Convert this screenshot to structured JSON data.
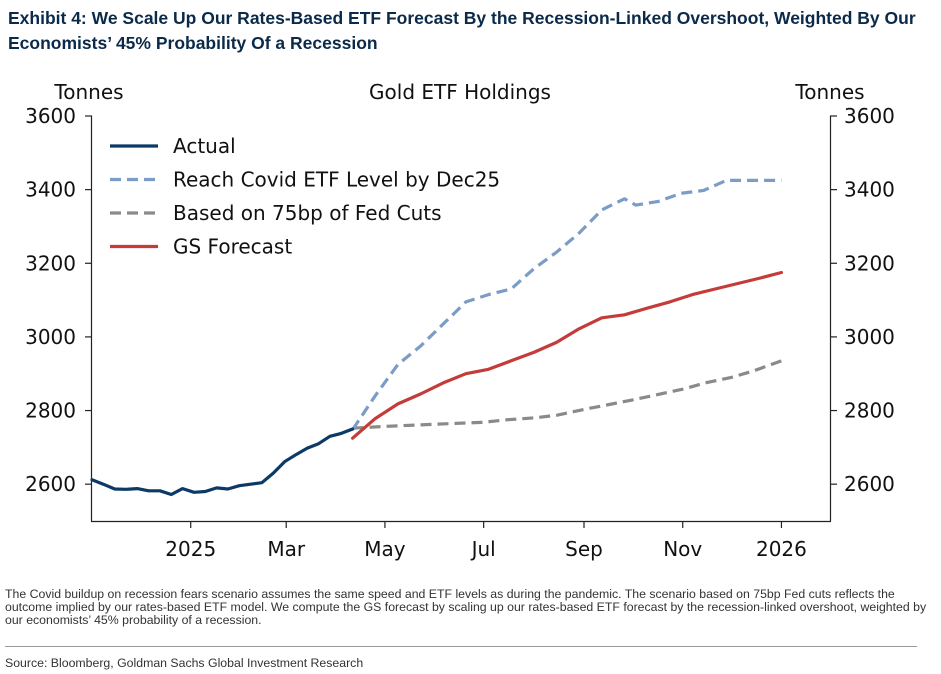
{
  "exhibit_title": "Exhibit 4: We Scale Up Our Rates-Based ETF Forecast By the Recession-Linked Overshoot, Weighted By Our Economists’ 45% Probability Of a Recession",
  "note": "The Covid buildup on recession fears scenario assumes the same speed and ETF levels as during the pandemic. The scenario based on 75bp Fed cuts reflects the outcome implied by our rates-based ETF model. We compute the GS forecast by scaling up our rates-based ETF forecast by the recession-linked overshoot, weighted by our economists’ 45% probability of a recession.",
  "source": "Source: Bloomberg, Goldman Sachs Global Investment Research",
  "chart_data": {
    "type": "line",
    "title": "Gold ETF Holdings",
    "ylabel_left": "Tonnes",
    "ylabel_right": "Tonnes",
    "ylim": [
      2500,
      3600
    ],
    "xlim": [
      "2024-11-01",
      "2026-01-31"
    ],
    "x_ticks": [
      {
        "date": "2025-01-01",
        "label": "2025"
      },
      {
        "date": "2025-03-01",
        "label": "Mar"
      },
      {
        "date": "2025-05-01",
        "label": "May"
      },
      {
        "date": "2025-07-01",
        "label": "Jul"
      },
      {
        "date": "2025-09-01",
        "label": "Sep"
      },
      {
        "date": "2025-11-01",
        "label": "Nov"
      },
      {
        "date": "2026-01-01",
        "label": "2026"
      }
    ],
    "y_ticks": [
      2600,
      2800,
      3000,
      3200,
      3400,
      3600
    ],
    "legend_position": "top-left",
    "grid": false,
    "series": [
      {
        "name": "Actual",
        "color": "#0b3a66",
        "dash": "solid",
        "points": [
          [
            "2024-11-01",
            2612
          ],
          [
            "2024-11-08",
            2600
          ],
          [
            "2024-11-15",
            2587
          ],
          [
            "2024-11-22",
            2586
          ],
          [
            "2024-11-29",
            2588
          ],
          [
            "2024-12-06",
            2582
          ],
          [
            "2024-12-13",
            2582
          ],
          [
            "2024-12-20",
            2572
          ],
          [
            "2024-12-27",
            2588
          ],
          [
            "2025-01-03",
            2578
          ],
          [
            "2025-01-10",
            2580
          ],
          [
            "2025-01-17",
            2590
          ],
          [
            "2025-01-24",
            2587
          ],
          [
            "2025-01-31",
            2596
          ],
          [
            "2025-02-07",
            2600
          ],
          [
            "2025-02-14",
            2604
          ],
          [
            "2025-02-21",
            2630
          ],
          [
            "2025-02-28",
            2661
          ],
          [
            "2025-03-07",
            2680
          ],
          [
            "2025-03-14",
            2698
          ],
          [
            "2025-03-21",
            2710
          ],
          [
            "2025-03-28",
            2730
          ],
          [
            "2025-04-04",
            2738
          ],
          [
            "2025-04-11",
            2750
          ]
        ]
      },
      {
        "name": "Reach Covid ETF Level by Dec25",
        "color": "#7a9cc6",
        "dash": "dashed",
        "points": [
          [
            "2025-04-11",
            2748
          ],
          [
            "2025-04-25",
            2840
          ],
          [
            "2025-05-09",
            2925
          ],
          [
            "2025-05-23",
            2975
          ],
          [
            "2025-06-06",
            3035
          ],
          [
            "2025-06-20",
            3095
          ],
          [
            "2025-07-04",
            3115
          ],
          [
            "2025-07-18",
            3130
          ],
          [
            "2025-08-01",
            3185
          ],
          [
            "2025-08-15",
            3230
          ],
          [
            "2025-08-29",
            3282
          ],
          [
            "2025-09-12",
            3345
          ],
          [
            "2025-09-26",
            3375
          ],
          [
            "2025-10-03",
            3358
          ],
          [
            "2025-10-17",
            3368
          ],
          [
            "2025-10-31",
            3390
          ],
          [
            "2025-11-14",
            3398
          ],
          [
            "2025-11-28",
            3425
          ],
          [
            "2025-12-12",
            3425
          ],
          [
            "2025-12-26",
            3425
          ],
          [
            "2026-01-01",
            3425
          ]
        ]
      },
      {
        "name": "Based on 75bp of Fed Cuts",
        "color": "#8a8a8a",
        "dash": "dashed",
        "points": [
          [
            "2025-04-11",
            2752
          ],
          [
            "2025-05-01",
            2757
          ],
          [
            "2025-06-01",
            2763
          ],
          [
            "2025-07-01",
            2768
          ],
          [
            "2025-07-15",
            2775
          ],
          [
            "2025-08-01",
            2780
          ],
          [
            "2025-08-15",
            2787
          ],
          [
            "2025-09-01",
            2803
          ],
          [
            "2025-09-15",
            2815
          ],
          [
            "2025-10-01",
            2829
          ],
          [
            "2025-10-15",
            2842
          ],
          [
            "2025-11-01",
            2858
          ],
          [
            "2025-11-15",
            2875
          ],
          [
            "2025-12-01",
            2890
          ],
          [
            "2025-12-15",
            2908
          ],
          [
            "2026-01-01",
            2935
          ]
        ]
      },
      {
        "name": "GS Forecast",
        "color": "#c43c39",
        "dash": "solid",
        "points": [
          [
            "2025-04-11",
            2725
          ],
          [
            "2025-04-25",
            2778
          ],
          [
            "2025-05-09",
            2818
          ],
          [
            "2025-05-23",
            2845
          ],
          [
            "2025-06-06",
            2875
          ],
          [
            "2025-06-20",
            2900
          ],
          [
            "2025-07-04",
            2912
          ],
          [
            "2025-07-18",
            2935
          ],
          [
            "2025-08-01",
            2958
          ],
          [
            "2025-08-15",
            2985
          ],
          [
            "2025-08-29",
            3022
          ],
          [
            "2025-09-12",
            3052
          ],
          [
            "2025-09-26",
            3060
          ],
          [
            "2025-10-10",
            3078
          ],
          [
            "2025-10-24",
            3095
          ],
          [
            "2025-11-07",
            3115
          ],
          [
            "2025-11-21",
            3130
          ],
          [
            "2025-12-05",
            3145
          ],
          [
            "2025-12-19",
            3160
          ],
          [
            "2026-01-01",
            3175
          ]
        ]
      }
    ]
  }
}
